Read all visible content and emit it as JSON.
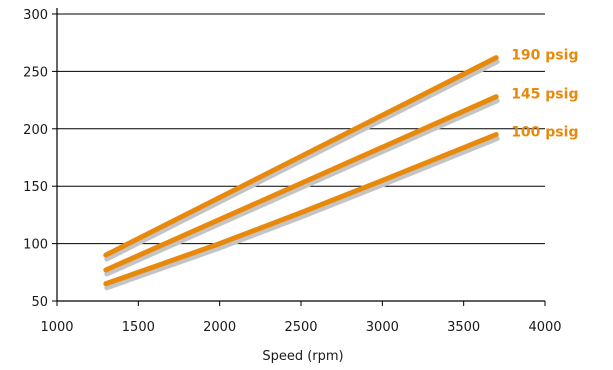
{
  "chart_data": {
    "type": "line",
    "title": "",
    "xlabel": "Speed (rpm)",
    "ylabel": "",
    "xlim": [
      1000,
      4000
    ],
    "ylim": [
      50,
      300
    ],
    "x_ticks": [
      1000,
      1500,
      2000,
      2500,
      3000,
      3500,
      4000
    ],
    "y_ticks": [
      50,
      100,
      150,
      200,
      250,
      300
    ],
    "grid": "horizontal",
    "line_color": "#e8890c",
    "shadow_color": "#c4c4c4",
    "series": [
      {
        "name": "190 psig",
        "x": [
          1300,
          3700
        ],
        "y": [
          90,
          262
        ]
      },
      {
        "name": "145 psig",
        "x": [
          1300,
          3700
        ],
        "y": [
          77,
          228
        ]
      },
      {
        "name": "100 psig",
        "x": [
          1300,
          2000,
          2500,
          3000,
          3700
        ],
        "y": [
          65,
          100,
          127,
          155,
          195
        ]
      }
    ]
  }
}
